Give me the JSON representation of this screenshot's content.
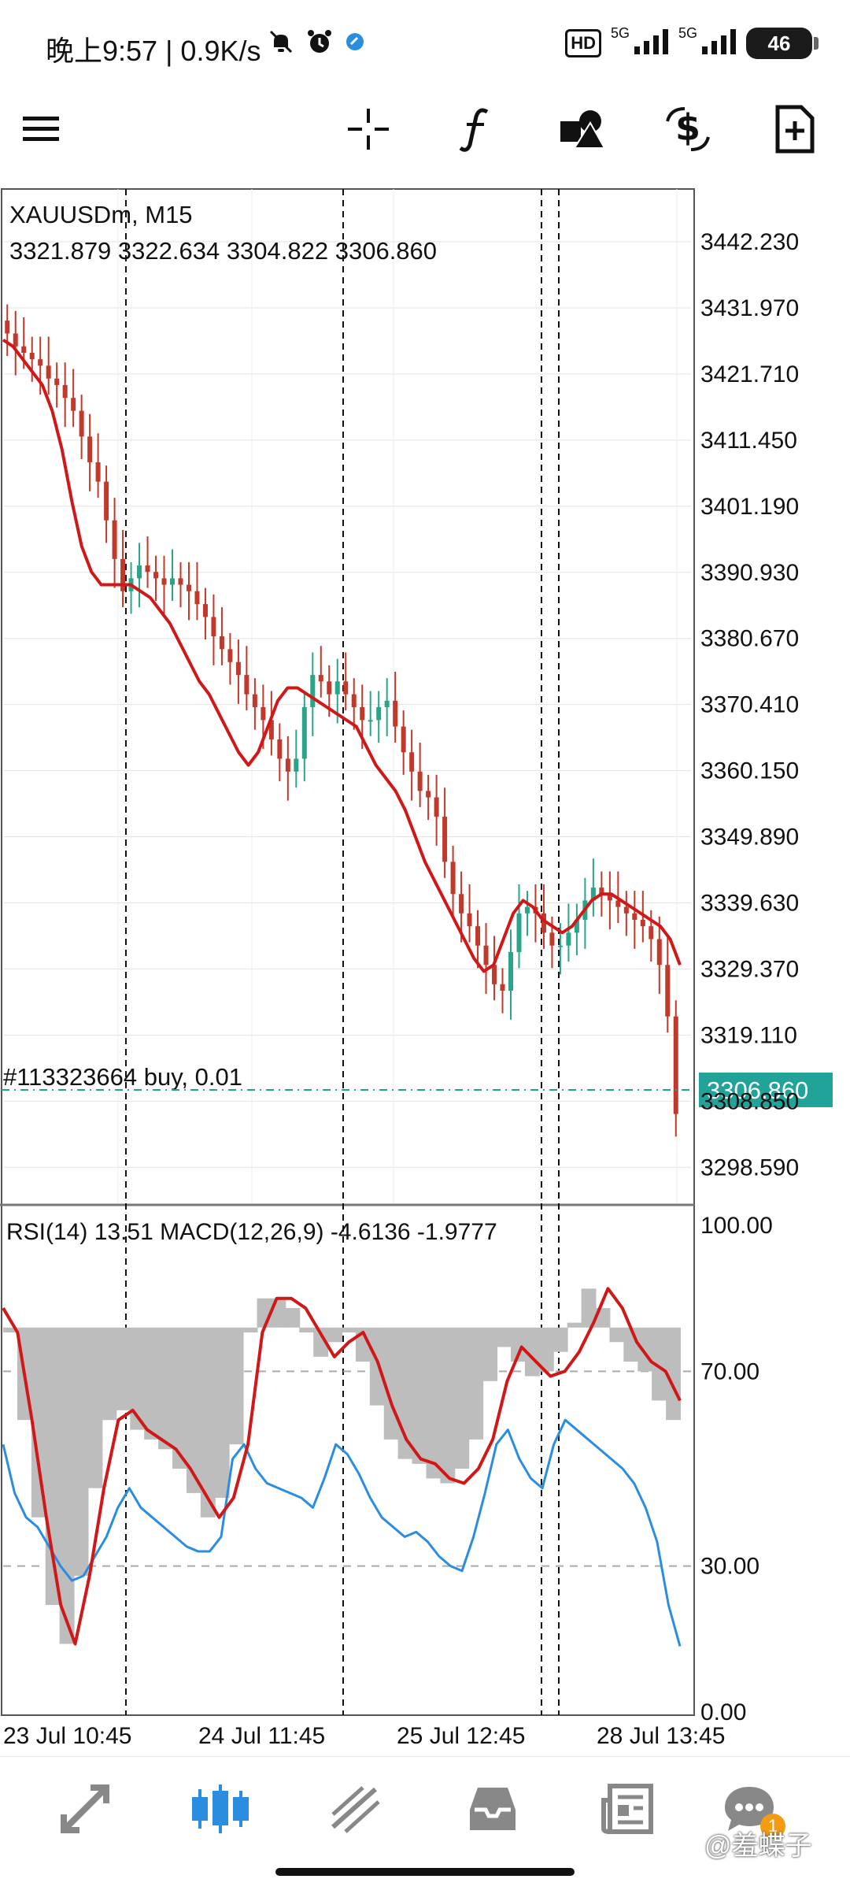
{
  "status_bar": {
    "time": "晚上9:57 | 0.9K/s",
    "network_badge": "HD",
    "network_label_1": "5G",
    "network_label_2": "5G",
    "battery": "46",
    "icons": [
      "mute-icon",
      "alarm-icon",
      "app-badge-icon",
      "signal-icon",
      "battery-icon"
    ]
  },
  "toolbar": {
    "icons": [
      "menu-icon",
      "crosshair-icon",
      "function-icon",
      "objects-icon",
      "trade-icon",
      "new-order-icon"
    ]
  },
  "chart": {
    "symbol_line": "XAUUSDm, M15",
    "ohlc_line": "3321.879 3322.634 3304.822 3306.860",
    "order_label": "#113323664 buy, 0.01",
    "current_price": "3306.860",
    "price_ticks": [
      "3442.230",
      "3431.970",
      "3421.710",
      "3411.450",
      "3401.190",
      "3390.930",
      "3380.670",
      "3370.410",
      "3360.150",
      "3349.890",
      "3339.630",
      "3329.370",
      "3319.110",
      "3308.850",
      "3298.590"
    ],
    "indicator_label": "RSI(14) 13.51 MACD(12,26,9) -4.6136 -1.9777",
    "indicator_ticks": [
      "100.00",
      "70.00",
      "30.00",
      "0.00"
    ],
    "time_ticks": [
      "23 Jul 10:45",
      "24 Jul 11:45",
      "25 Jul 12:45",
      "28 Jul 13:45"
    ],
    "colors": {
      "ma_line": "#d01818",
      "rsi_line": "#2b8de0",
      "histogram": "#bdbdbd",
      "price_tag": "#21a39a",
      "bull": "#2aa58a",
      "bear": "#c0392b"
    }
  },
  "chart_data": {
    "type": "line",
    "price": {
      "ylim": [
        3293,
        3447
      ],
      "close": [
        3428,
        3426,
        3425,
        3424,
        3423,
        3421,
        3420,
        3418,
        3416,
        3412,
        3408,
        3405,
        3399,
        3393,
        3388,
        3390,
        3392,
        3391,
        3390,
        3389,
        3390,
        3389,
        3388,
        3386,
        3384,
        3381,
        3379,
        3377,
        3375,
        3372,
        3370,
        3368,
        3365,
        3362,
        3360,
        3362,
        3370,
        3375,
        3374,
        3372,
        3374,
        3372,
        3370,
        3368,
        3368,
        3370,
        3371,
        3367,
        3363,
        3360,
        3357,
        3356,
        3353,
        3346,
        3341,
        3338,
        3336,
        3333,
        3330,
        3327,
        3326,
        3332,
        3338,
        3339,
        3338,
        3335,
        3333,
        3333,
        3335,
        3337,
        3340,
        3342,
        3341,
        3340,
        3339,
        3338,
        3337,
        3336,
        3334,
        3330,
        3322,
        3306.86
      ],
      "ma": [
        3427,
        3426,
        3424,
        3422,
        3420,
        3416,
        3410,
        3402,
        3395,
        3391,
        3389,
        3389,
        3389,
        3389,
        3388,
        3387,
        3385,
        3383,
        3380,
        3377,
        3374,
        3372,
        3369,
        3366,
        3363,
        3361,
        3363,
        3367,
        3371,
        3373,
        3373,
        3372,
        3371,
        3370,
        3369,
        3368,
        3367,
        3364,
        3361,
        3359,
        3357,
        3354,
        3350,
        3346,
        3343,
        3340,
        3337,
        3334,
        3331,
        3329,
        3330,
        3334,
        3338,
        3340,
        3339,
        3337,
        3336,
        3335,
        3336,
        3338,
        3340,
        3341,
        3341,
        3340,
        3339,
        3338,
        3337,
        3336,
        3334,
        3330
      ]
    },
    "indicator": {
      "ylim": [
        0,
        100
      ],
      "levels": [
        70,
        30
      ],
      "rsi": [
        55,
        45,
        40,
        38,
        34,
        30,
        27,
        28,
        32,
        36,
        42,
        46,
        42,
        40,
        38,
        36,
        34,
        33,
        33,
        36,
        52,
        55,
        50,
        47,
        46,
        45,
        44,
        42,
        48,
        55,
        53,
        49,
        44,
        40,
        38,
        36,
        37,
        35,
        32,
        30,
        29,
        36,
        45,
        55,
        58,
        52,
        48,
        46,
        55,
        60,
        58,
        56,
        54,
        52,
        50,
        47,
        42,
        35,
        22,
        13.51
      ],
      "macd_line": [
        83,
        78,
        60,
        40,
        22,
        14,
        28,
        46,
        60,
        62,
        58,
        56,
        54,
        50,
        45,
        40,
        44,
        55,
        78,
        85,
        85,
        83,
        78,
        73,
        76,
        78,
        72,
        63,
        56,
        52,
        51,
        48,
        47,
        50,
        56,
        68,
        75,
        72,
        69,
        70,
        74,
        80,
        87,
        83,
        76,
        72,
        70,
        64
      ],
      "signal_histogram": [
        78,
        60,
        40,
        22,
        14,
        28,
        46,
        60,
        62,
        58,
        56,
        54,
        50,
        45,
        40,
        44,
        55,
        78,
        85,
        85,
        83,
        78,
        73,
        76,
        78,
        72,
        63,
        56,
        52,
        51,
        48,
        47,
        50,
        56,
        68,
        75,
        72,
        69,
        70,
        74,
        80,
        87,
        83,
        76,
        72,
        70,
        64,
        60
      ]
    },
    "x_ticks": [
      "23 Jul 10:45",
      "24 Jul 11:45",
      "25 Jul 12:45",
      "28 Jul 13:45"
    ]
  },
  "bottom_nav": {
    "icons": [
      "quotes-icon",
      "chart-icon",
      "trade-icon",
      "history-icon",
      "news-icon",
      "messages-icon"
    ],
    "messages_badge": "1",
    "watermark": "@羞蝶子"
  }
}
